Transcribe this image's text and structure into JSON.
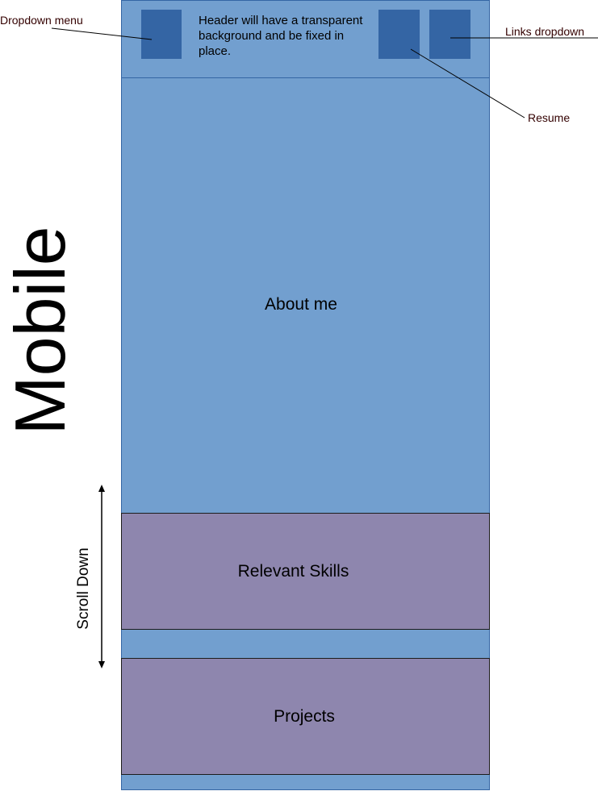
{
  "header": {
    "note": "Header will have a transparent background and be fixed in place."
  },
  "sections": {
    "about": "About me",
    "skills": "Relevant Skills",
    "projects": "Projects"
  },
  "callouts": {
    "dropdown_menu": "Dropdown menu",
    "links_dropdown": "Links dropdown",
    "resume": "Resume"
  },
  "labels": {
    "mobile": "Mobile",
    "scroll": "Scroll Down"
  },
  "colors": {
    "page_blue": "#729fcf",
    "box_blue": "#3465a4",
    "section_purple": "#8e86ae"
  }
}
